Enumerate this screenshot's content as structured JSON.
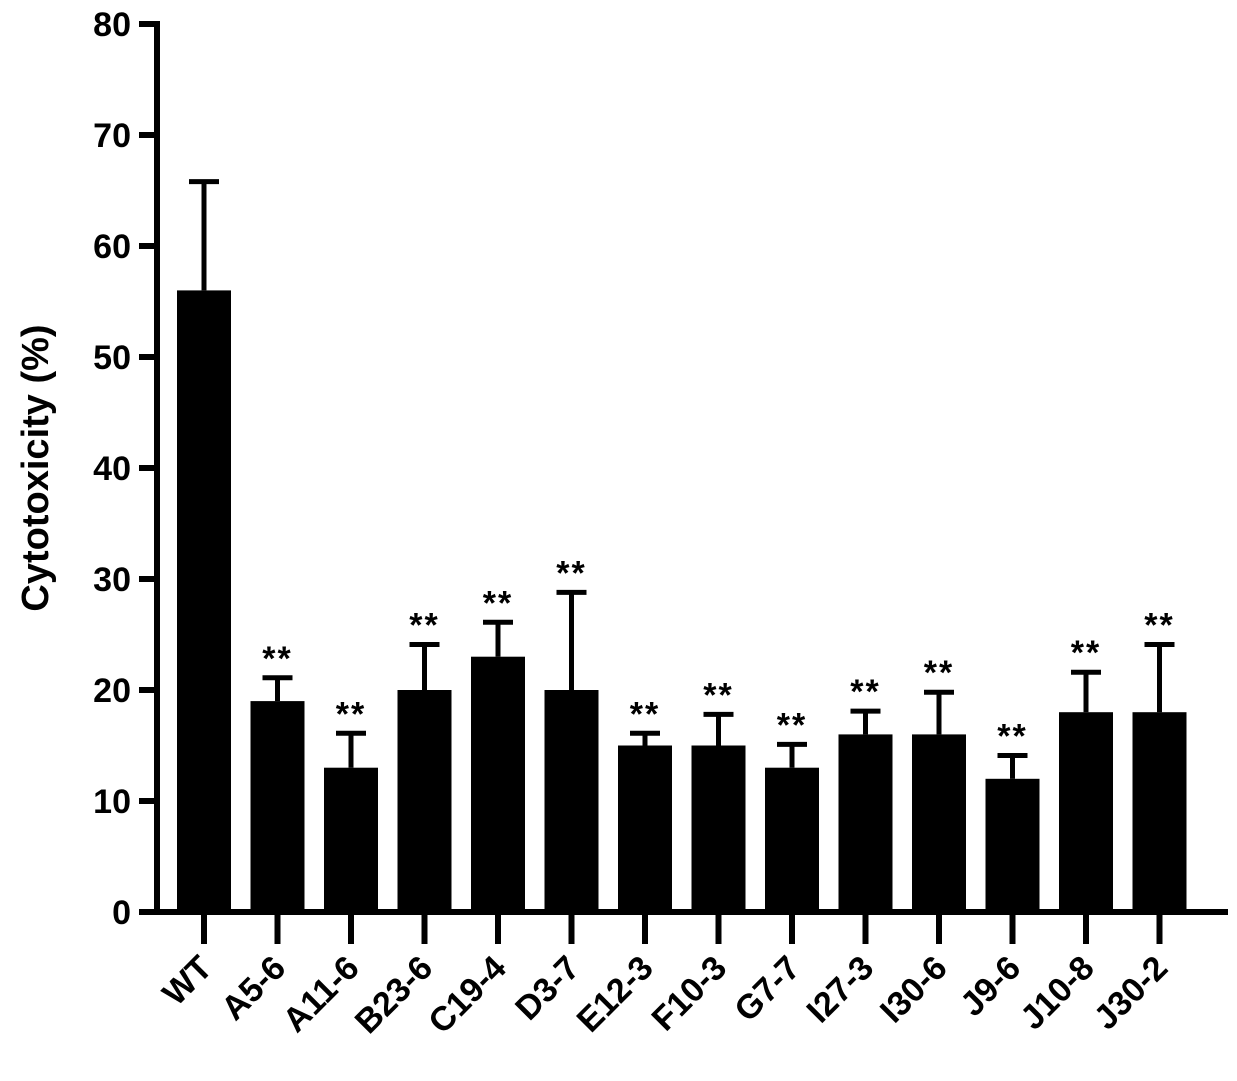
{
  "chart_data": {
    "type": "bar",
    "title": "",
    "xlabel": "",
    "ylabel": "Cytotoxicity (%)",
    "ylim": [
      0,
      80
    ],
    "yticks": [
      0,
      10,
      20,
      30,
      40,
      50,
      60,
      70,
      80
    ],
    "categories": [
      "WT",
      "A5-6",
      "A11-6",
      "B23-6",
      "C19-4",
      "D3-7",
      "E12-3",
      "F10-3",
      "G7-7",
      "I27-3",
      "I30-6",
      "J9-6",
      "J10-8",
      "J30-2"
    ],
    "values": [
      56,
      19,
      13,
      20,
      23,
      20,
      15,
      15,
      13,
      16,
      16,
      12,
      18,
      18
    ],
    "error_upper": [
      9.8,
      2.1,
      3.1,
      4.1,
      3.1,
      8.8,
      1.1,
      2.8,
      2.1,
      2.1,
      3.8,
      2.1,
      3.6,
      6.1
    ],
    "annotations": [
      "",
      "**",
      "**",
      "**",
      "**",
      "**",
      "**",
      "**",
      "**",
      "**",
      "**",
      "**",
      "**",
      "**"
    ],
    "bar_color": "#000000",
    "grid": false,
    "legend": "none"
  }
}
